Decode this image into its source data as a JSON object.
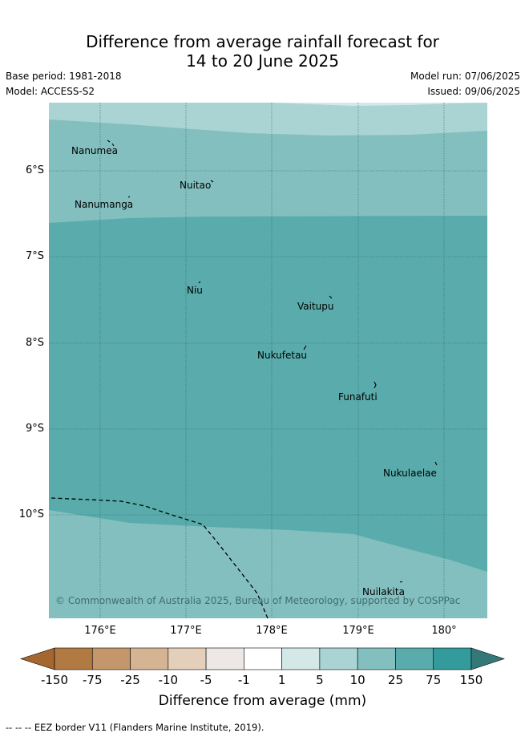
{
  "header": {
    "title_line1": "Difference from average rainfall forecast for",
    "title_line2": "14 to 20 June 2025",
    "base_period": "Base period: 1981-2018",
    "model": "Model: ACCESS-S2",
    "model_run": "Model run: 07/06/2025",
    "issued": "Issued: 09/06/2025"
  },
  "map": {
    "latitude_labels": [
      "6°S",
      "7°S",
      "8°S",
      "9°S",
      "10°S"
    ],
    "longitude_labels": [
      "176°E",
      "177°E",
      "178°E",
      "179°E",
      "180°"
    ],
    "islands": [
      {
        "name": "Nanumea"
      },
      {
        "name": "Nuitao"
      },
      {
        "name": "Nanumanga"
      },
      {
        "name": "Niu"
      },
      {
        "name": "Vaitupu"
      },
      {
        "name": "Nukufetau"
      },
      {
        "name": "Funafuti"
      },
      {
        "name": "Nukulaelae"
      },
      {
        "name": "Nuilakita"
      }
    ],
    "copyright": "© Commonwealth of Australia 2025, Bureau of Meteorology, supported by COSPPac",
    "shading_colors": {
      "5_to_10": "#aad4d4",
      "10_to_25": "#84bfbf",
      "25_to_75": "#5aabab"
    }
  },
  "colorbar": {
    "tick_labels": [
      "-150",
      "-75",
      "-25",
      "-10",
      "-5",
      "-1",
      "1",
      "5",
      "10",
      "25",
      "75",
      "150"
    ],
    "colors": [
      "#a5662f",
      "#b27a43",
      "#c4966b",
      "#d4b493",
      "#e4cfbb",
      "#ede8e5",
      "#ffffff",
      "#d4e8e8",
      "#aad4d4",
      "#84bfbf",
      "#5aabab",
      "#339b9b",
      "#347878"
    ],
    "title": "Difference from average (mm)"
  },
  "footnote": "-- -- -- EEZ border V11 (Flanders Marine Institute, 2019)."
}
